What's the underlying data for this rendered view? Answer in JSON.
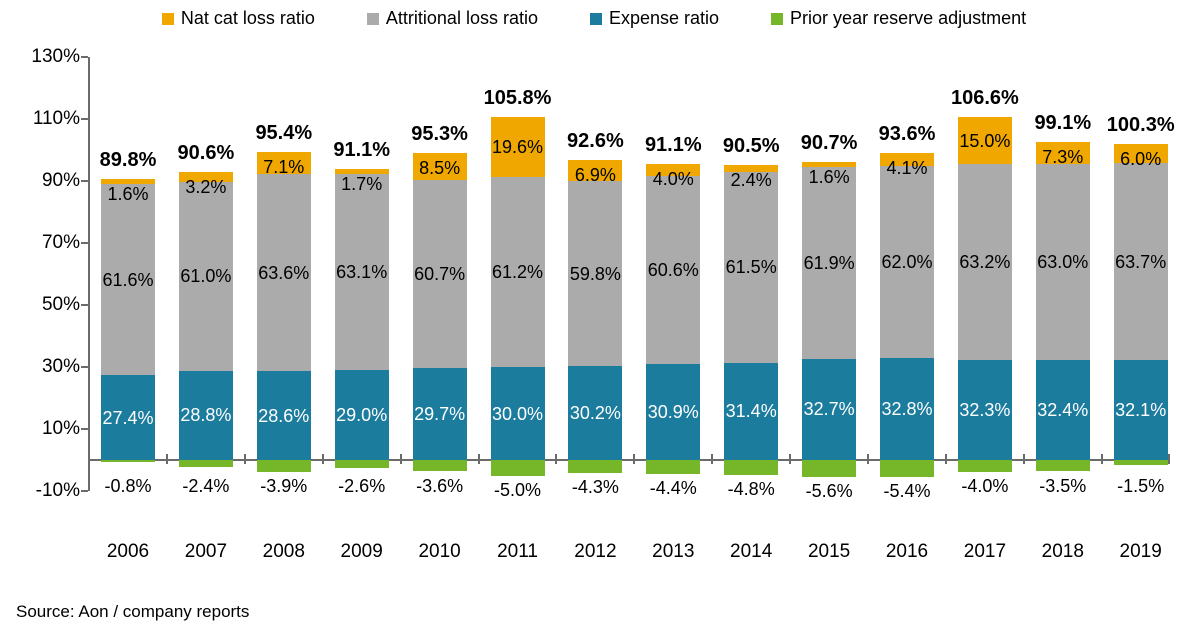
{
  "source": "Source: Aon / company reports",
  "colors": {
    "nat_cat": "#F0A800",
    "attritional": "#ABABAB",
    "expense": "#1B7C9D",
    "prior_year": "#76B72A",
    "axis": "#6b6b6b"
  },
  "legend": [
    {
      "label": "Nat cat loss ratio",
      "color": "#F0A800"
    },
    {
      "label": "Attritional loss ratio",
      "color": "#ABABAB"
    },
    {
      "label": "Expense ratio",
      "color": "#1B7C9D"
    },
    {
      "label": "Prior year reserve adjustment",
      "color": "#76B72A"
    }
  ],
  "y_axis": {
    "tick_labels": [
      "130%",
      "110%",
      "90%",
      "70%",
      "50%",
      "30%",
      "10%",
      "-10%"
    ],
    "tick_values": [
      130,
      110,
      90,
      70,
      50,
      30,
      10,
      -10
    ]
  },
  "chart_data": {
    "type": "bar",
    "stacked": true,
    "title": "",
    "xlabel": "",
    "ylabel": "",
    "ylim": [
      -10,
      130
    ],
    "ytick_step": 20,
    "grid": false,
    "legend_position": "top",
    "categories": [
      "2006",
      "2007",
      "2008",
      "2009",
      "2010",
      "2011",
      "2012",
      "2013",
      "2014",
      "2015",
      "2016",
      "2017",
      "2018",
      "2019"
    ],
    "series": [
      {
        "name": "Nat cat loss ratio",
        "color": "#F0A800",
        "values": [
          1.6,
          3.2,
          7.1,
          1.7,
          8.5,
          19.6,
          6.9,
          4.0,
          2.4,
          1.6,
          4.1,
          15.0,
          7.3,
          6.0
        ]
      },
      {
        "name": "Attritional loss ratio",
        "color": "#ABABAB",
        "values": [
          61.6,
          61.0,
          63.6,
          63.1,
          60.7,
          61.2,
          59.8,
          60.6,
          61.5,
          61.9,
          62.0,
          63.2,
          63.0,
          63.7
        ]
      },
      {
        "name": "Expense ratio",
        "color": "#1B7C9D",
        "values": [
          27.4,
          28.8,
          28.6,
          29.0,
          29.7,
          30.0,
          30.2,
          30.9,
          31.4,
          32.7,
          32.8,
          32.3,
          32.4,
          32.1
        ]
      },
      {
        "name": "Prior year reserve adjustment",
        "color": "#76B72A",
        "values": [
          -0.8,
          -2.4,
          -3.9,
          -2.6,
          -3.6,
          -5.0,
          -4.3,
          -4.4,
          -4.8,
          -5.6,
          -5.4,
          -4.0,
          -3.5,
          -1.5
        ]
      }
    ],
    "totals": [
      89.8,
      90.6,
      95.4,
      91.1,
      95.3,
      105.8,
      92.6,
      91.1,
      90.5,
      90.7,
      93.6,
      106.6,
      99.1,
      100.3
    ]
  }
}
